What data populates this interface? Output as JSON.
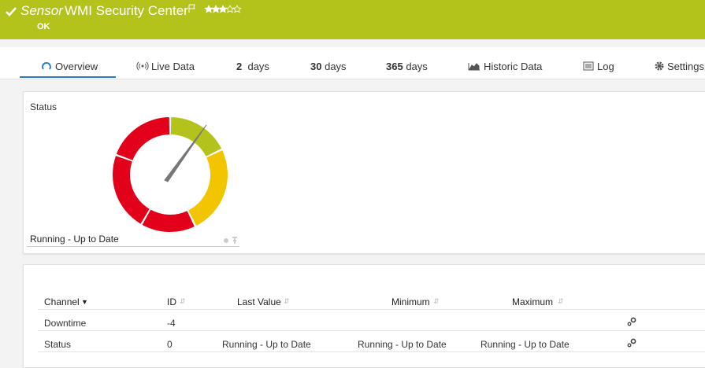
{
  "header": {
    "sensor_label": "Sensor",
    "title": "WMI Security Center",
    "status": "OK"
  },
  "tabs": {
    "overview": "Overview",
    "live_data": "Live Data",
    "days": [
      {
        "number": 2,
        "unit": "days"
      },
      {
        "number": 30,
        "unit": "days"
      },
      {
        "number": 365,
        "unit": "days"
      }
    ],
    "historic_data": "Historic Data",
    "log": "Log",
    "settings": "Settings"
  },
  "gauge": {
    "title": "Status",
    "value_label": "Running - Up to Date"
  },
  "table": {
    "columns": [
      "Channel",
      "ID",
      "Last Value",
      "Minimum",
      "Maximum"
    ],
    "rows": [
      {
        "channel": "Downtime",
        "id": -4
      },
      {
        "channel": "Status",
        "id": 0,
        "last_value": "Running - Up to Date",
        "minimum": "Running - Up to Date",
        "maximum": "Running - Up to Date"
      }
    ]
  }
}
